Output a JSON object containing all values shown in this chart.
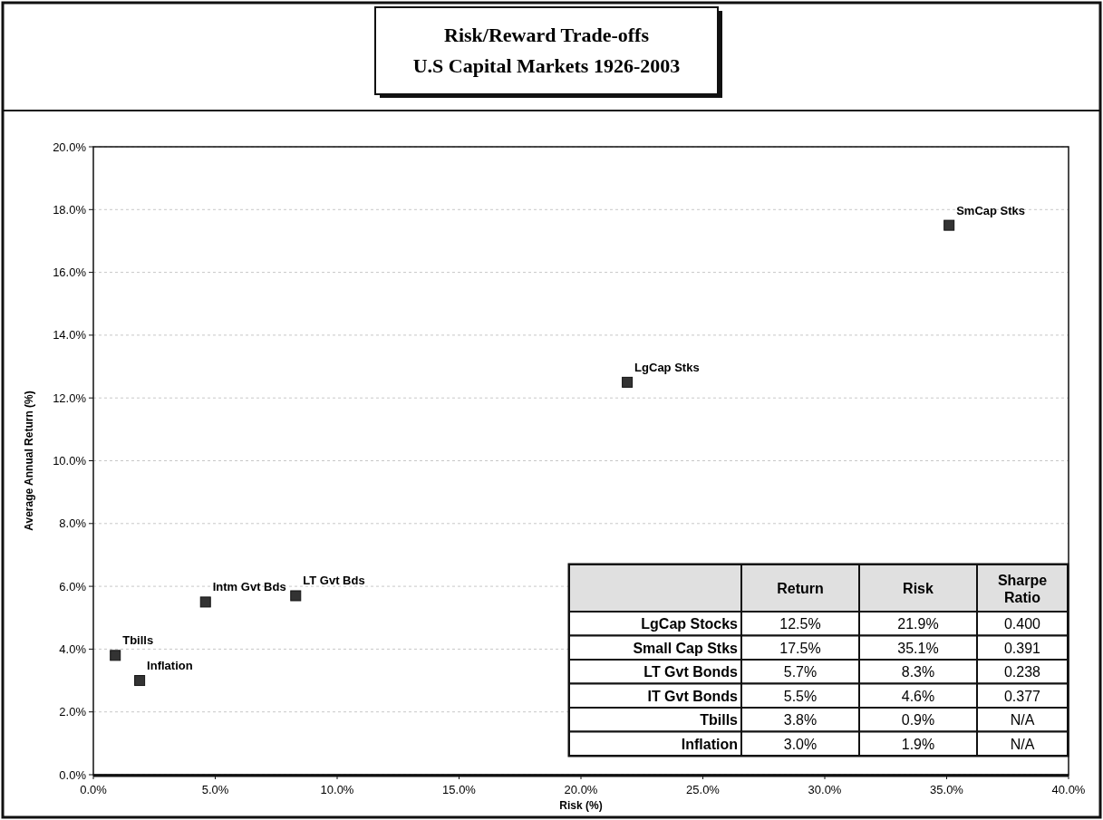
{
  "chart_data": {
    "type": "scatter",
    "title": "Risk/Reward Trade-offs\nU.S Capital Markets 1926-2003",
    "xlabel": "Risk (%)",
    "ylabel": "Average Annual Return (%)",
    "xlim": [
      0,
      40
    ],
    "ylim": [
      0,
      20
    ],
    "xticks": [
      {
        "value": 0,
        "label": "0.0%"
      },
      {
        "value": 5,
        "label": "5.0%"
      },
      {
        "value": 10,
        "label": "10.0%"
      },
      {
        "value": 15,
        "label": "15.0%"
      },
      {
        "value": 20,
        "label": "20.0%"
      },
      {
        "value": 25,
        "label": "25.0%"
      },
      {
        "value": 30,
        "label": "30.0%"
      },
      {
        "value": 35,
        "label": "35.0%"
      },
      {
        "value": 40,
        "label": "40.0%"
      }
    ],
    "yticks": [
      {
        "value": 0,
        "label": "0.0%"
      },
      {
        "value": 2,
        "label": "2.0%"
      },
      {
        "value": 4,
        "label": "4.0%"
      },
      {
        "value": 6,
        "label": "6.0%"
      },
      {
        "value": 8,
        "label": "8.0%"
      },
      {
        "value": 10,
        "label": "10.0%"
      },
      {
        "value": 12,
        "label": "12.0%"
      },
      {
        "value": 14,
        "label": "14.0%"
      },
      {
        "value": 16,
        "label": "16.0%"
      },
      {
        "value": 18,
        "label": "18.0%"
      },
      {
        "value": 20,
        "label": "20.0%"
      }
    ],
    "grid": "y",
    "marker": "square",
    "series": [
      {
        "name": "LgCap Stks",
        "color": "#333333",
        "x": [
          21.9
        ],
        "values": [
          12.5
        ]
      },
      {
        "name": "SmCap Stks",
        "color": "#333333",
        "x": [
          35.1
        ],
        "values": [
          17.5
        ]
      },
      {
        "name": "LT Gvt Bds",
        "color": "#333333",
        "x": [
          8.3
        ],
        "values": [
          5.7
        ]
      },
      {
        "name": "Intm Gvt Bds",
        "color": "#333333",
        "x": [
          4.6
        ],
        "values": [
          5.5
        ]
      },
      {
        "name": "Tbills",
        "color": "#333333",
        "x": [
          0.9
        ],
        "values": [
          3.8
        ]
      },
      {
        "name": "Inflation",
        "color": "#333333",
        "x": [
          1.9
        ],
        "values": [
          3.0
        ]
      }
    ],
    "annotations": [
      "Return",
      "Risk",
      "Sharpe Ratio",
      "LgCap Stocks",
      "12.5%",
      "21.9%",
      "0.400",
      "Small Cap Stks",
      "17.5%",
      "35.1%",
      "0.391",
      "LT Gvt Bonds",
      "5.7%",
      "8.3%",
      "0.238",
      "IT Gvt Bonds",
      "5.5%",
      "4.6%",
      "0.377",
      "Tbills",
      "3.8%",
      "0.9%",
      "N/A",
      "Inflation",
      "3.0%",
      "1.9%",
      "N/A"
    ]
  }
}
